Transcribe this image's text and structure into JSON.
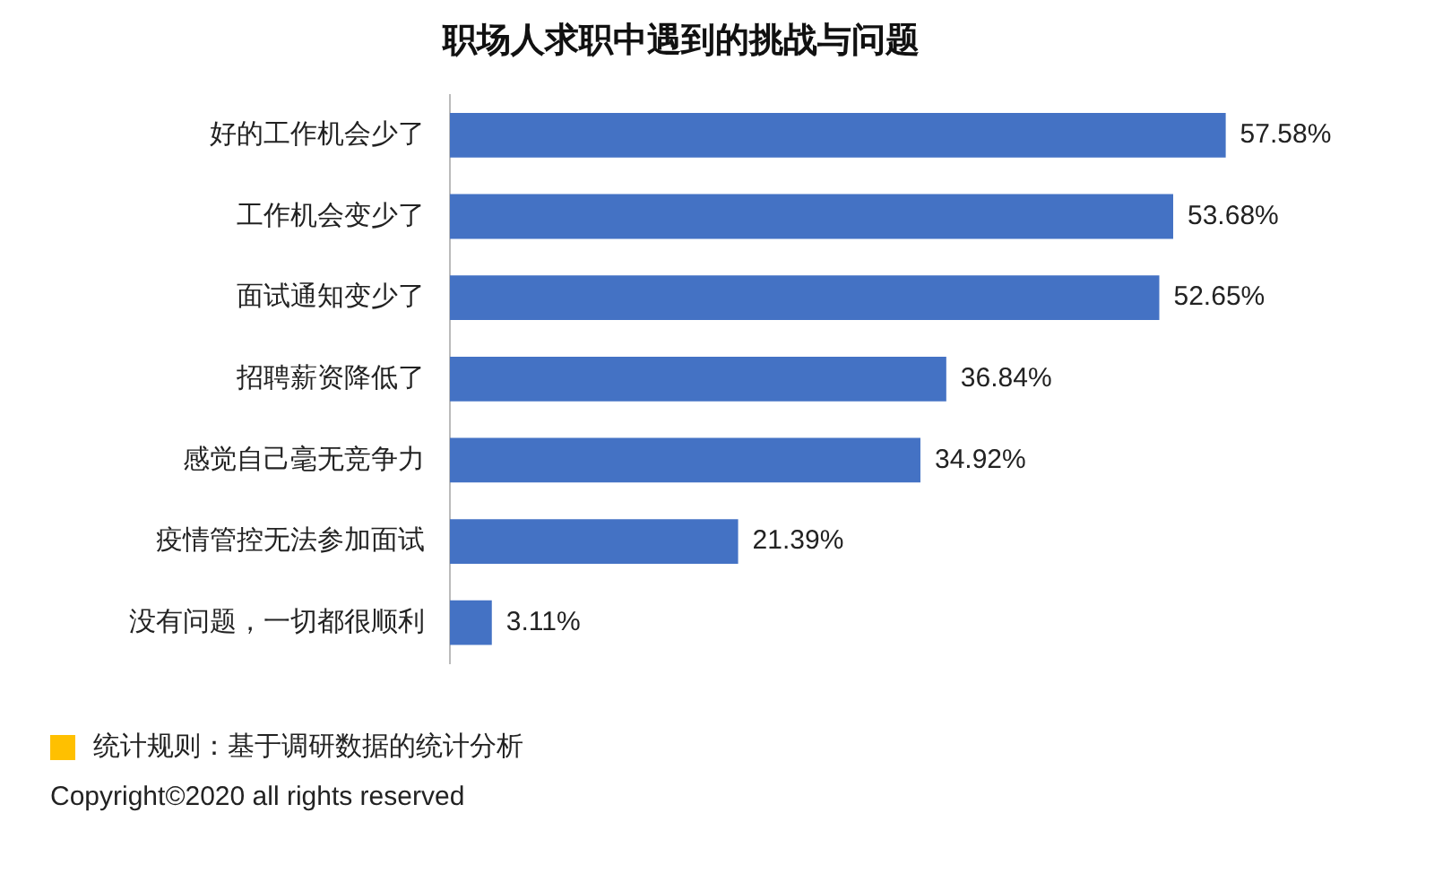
{
  "chart_data": {
    "type": "bar",
    "orientation": "horizontal",
    "title": "职场人求职中遇到的挑战与问题",
    "categories": [
      "好的工作机会少了",
      "工作机会变少了",
      "面试通知变少了",
      "招聘薪资降低了",
      "感觉自己毫无竞争力",
      "疫情管控无法参加面试",
      "没有问题，一切都很顺利"
    ],
    "values": [
      57.58,
      53.68,
      52.65,
      36.84,
      34.92,
      21.39,
      3.11
    ],
    "value_labels": [
      "57.58%",
      "53.68%",
      "52.65%",
      "36.84%",
      "34.92%",
      "21.39%",
      "3.11%"
    ],
    "color": "#4472c4",
    "tick_labels": "y",
    "grid": false,
    "legend": false,
    "annotations": [
      "统计规则：基于调研数据的统计分析",
      "Copyright©2020 all rights reserved"
    ]
  }
}
